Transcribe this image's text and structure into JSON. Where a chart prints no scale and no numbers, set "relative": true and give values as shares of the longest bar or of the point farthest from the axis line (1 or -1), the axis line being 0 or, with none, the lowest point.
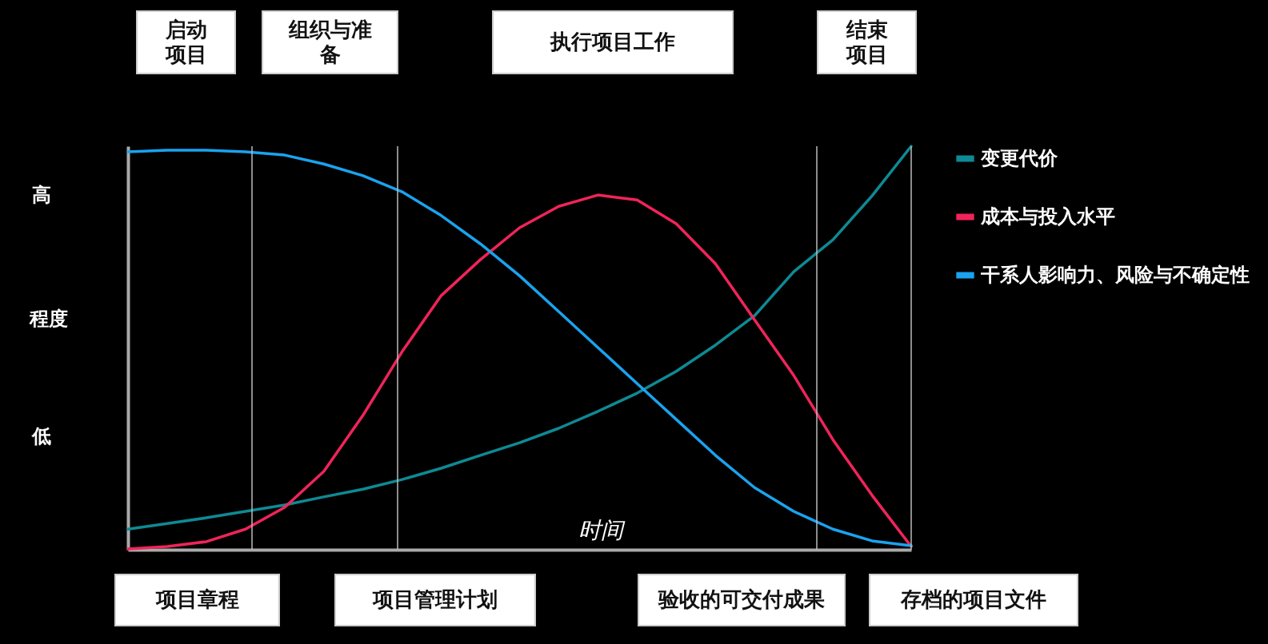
{
  "chart_data": {
    "type": "line",
    "relative": true,
    "xlabel": "时间",
    "ylabel": "程度",
    "legend": "right",
    "categories": [
      null,
      null,
      null,
      null,
      null,
      null,
      null,
      null,
      null,
      null,
      null,
      null,
      null,
      null,
      null,
      null,
      null,
      null,
      null,
      null,
      null
    ],
    "series": [
      {
        "name": "变更代价",
        "color": "#0e8a94",
        "values": [
          0.051,
          0.065,
          0.079,
          0.095,
          0.111,
          0.131,
          0.15,
          0.174,
          0.202,
          0.234,
          0.265,
          0.301,
          0.343,
          0.388,
          0.442,
          0.507,
          0.58,
          0.689,
          0.768,
          0.877,
          1
        ]
      },
      {
        "name": "成本与投入水平",
        "color": "#f0245a",
        "values": [
          0.002,
          0.008,
          0.02,
          0.051,
          0.105,
          0.194,
          0.333,
          0.491,
          0.63,
          0.719,
          0.798,
          0.851,
          0.879,
          0.867,
          0.808,
          0.709,
          0.57,
          0.432,
          0.273,
          0.135,
          0.008
        ]
      },
      {
        "name": "干系人影响力、风险与不确定性",
        "color": "#1aa3ef",
        "values": [
          0.986,
          0.99,
          0.99,
          0.986,
          0.978,
          0.956,
          0.927,
          0.887,
          0.828,
          0.758,
          0.679,
          0.59,
          0.501,
          0.412,
          0.323,
          0.234,
          0.154,
          0.095,
          0.051,
          0.022,
          0.01
        ]
      }
    ],
    "annotations": [
      "启动项目",
      "组织与准备",
      "执行项目工作",
      "结束项目",
      "高",
      "低",
      "项目章程",
      "项目管理计划",
      "验收的可交付成果",
      "存档的项目文件"
    ]
  }
}
